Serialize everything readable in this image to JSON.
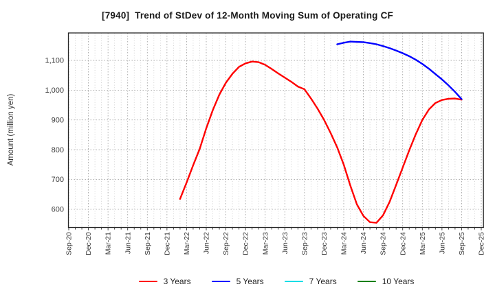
{
  "chart_data": {
    "type": "line",
    "title": "[7940]  Trend of StDev of 12-Month Moving Sum of Operating CF",
    "ylabel": "Amount (million yen)",
    "xlabel": "",
    "grid": true,
    "legend_position": "bottom",
    "ylim": [
      539,
      1192
    ],
    "yticks": [
      600,
      700,
      800,
      900,
      1000,
      1100
    ],
    "ytick_labels": [
      "600",
      "700",
      "800",
      "900",
      "1,000",
      "1,100"
    ],
    "x_tick_labels": [
      "Sep-20",
      "Dec-20",
      "Mar-21",
      "Jun-21",
      "Sep-21",
      "Dec-21",
      "Mar-22",
      "Jun-22",
      "Sep-22",
      "Dec-22",
      "Mar-23",
      "Jun-23",
      "Sep-23",
      "Dec-23",
      "Mar-24",
      "Jun-24",
      "Sep-24",
      "Dec-24",
      "Mar-25",
      "Jun-25",
      "Sep-25",
      "Dec-25"
    ],
    "x_tick_step_months": 3,
    "x_total_months": 63,
    "series": [
      {
        "name": "3 Years",
        "color": "#ff0000",
        "start_month_label": "Feb-22",
        "start_month_index": 17,
        "values": [
          635,
          690,
          748,
          803,
          872,
          933,
          985,
          1025,
          1055,
          1078,
          1090,
          1096,
          1094,
          1085,
          1071,
          1056,
          1042,
          1028,
          1012,
          1003,
          972,
          938,
          900,
          856,
          808,
          750,
          680,
          617,
          578,
          557,
          555,
          580,
          625,
          682,
          740,
          798,
          852,
          900,
          935,
          957,
          967,
          971,
          972,
          968
        ]
      },
      {
        "name": "5 Years",
        "color": "#0000ff",
        "start_month_label": "Feb-24",
        "start_month_index": 41,
        "values": [
          1154,
          1159,
          1163,
          1162,
          1161,
          1158,
          1154,
          1148,
          1141,
          1133,
          1124,
          1114,
          1102,
          1088,
          1072,
          1054,
          1036,
          1016,
          994,
          970
        ]
      },
      {
        "name": "7 Years",
        "color": "#00dde6",
        "values": []
      },
      {
        "name": "10 Years",
        "color": "#008000",
        "values": []
      }
    ]
  }
}
